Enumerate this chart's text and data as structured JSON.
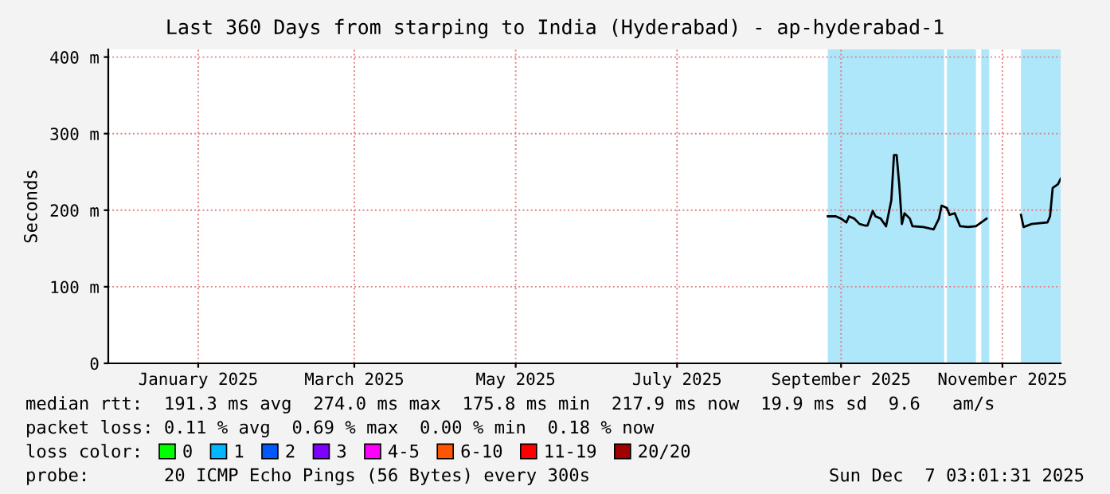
{
  "chart_data": {
    "type": "line",
    "title": "Last 360 Days from starping to India (Hyderabad) - ap-hyderabad-1",
    "ylabel": "Seconds",
    "x": [
      "2025-09-10",
      "2025-09-13",
      "2025-09-15",
      "2025-09-17",
      "2025-09-18",
      "2025-09-20",
      "2025-09-22",
      "2025-09-24",
      "2025-09-25",
      "2025-09-27",
      "2025-09-28",
      "2025-09-30",
      "2025-10-02",
      "2025-10-04",
      "2025-10-05",
      "2025-10-06",
      "2025-10-07",
      "2025-10-08",
      "2025-10-09",
      "2025-10-11",
      "2025-10-12",
      "2025-10-16",
      "2025-10-20",
      "2025-10-22",
      "2025-10-23",
      "2025-10-25",
      "2025-10-26",
      "2025-10-28",
      "2025-10-30",
      "2025-11-02",
      "2025-11-05",
      "2025-11-07",
      "2025-11-09",
      "2025-11-15",
      "2025-11-22",
      "2025-11-23",
      "2025-11-26",
      "2025-12-02",
      "2025-12-03",
      "2025-12-04",
      "2025-12-06",
      "2025-12-07"
    ],
    "series": [
      {
        "color": "#000000",
        "values": [
          192,
          192,
          189,
          184,
          192,
          189,
          182,
          180,
          180,
          199,
          192,
          189,
          179,
          213,
          272,
          272,
          233,
          182,
          196,
          189,
          179,
          178,
          175,
          189,
          206,
          203,
          194,
          196,
          179,
          178,
          179,
          184,
          189,
          null,
          194,
          178,
          182,
          184,
          192,
          229,
          234,
          241
        ]
      },
      {
        "name": "0",
        "color": "#00ff00",
        "values": [
          null,
          null,
          null,
          null,
          null,
          null,
          null,
          null,
          null,
          null,
          null,
          null,
          null,
          null,
          null,
          null,
          null,
          null,
          null,
          null,
          null,
          null,
          null,
          null,
          null,
          null,
          null,
          null,
          null,
          null,
          null,
          null,
          null,
          null,
          null,
          null,
          null,
          null,
          null,
          null,
          null,
          null
        ]
      },
      {
        "name": "1",
        "color": "#00b8ff",
        "values": [
          null,
          null,
          null,
          null,
          null,
          null,
          null,
          null,
          null,
          null,
          null,
          null,
          null,
          null,
          null,
          null,
          null,
          null,
          null,
          null,
          null,
          null,
          null,
          null,
          null,
          null,
          null,
          null,
          null,
          null,
          null,
          null,
          null,
          null,
          null,
          null,
          null,
          null,
          null,
          null,
          null,
          null
        ]
      },
      {
        "name": "2",
        "color": "#0059ff",
        "values": [
          null,
          null,
          null,
          null,
          null,
          null,
          null,
          null,
          null,
          null,
          null,
          null,
          null,
          null,
          null,
          null,
          null,
          null,
          null,
          null,
          null,
          null,
          null,
          null,
          null,
          null,
          null,
          null,
          null,
          null,
          null,
          null,
          null,
          null,
          null,
          null,
          null,
          null,
          null,
          null,
          null,
          null
        ]
      },
      {
        "name": "3",
        "color": "#7e00ff",
        "values": [
          null,
          null,
          null,
          null,
          null,
          null,
          null,
          null,
          null,
          null,
          null,
          null,
          null,
          null,
          null,
          null,
          null,
          null,
          null,
          null,
          null,
          null,
          null,
          null,
          null,
          null,
          null,
          null,
          null,
          null,
          null,
          null,
          null,
          null,
          null,
          null,
          null,
          null,
          null,
          null,
          null,
          null
        ]
      },
      {
        "name": "4-5",
        "color": "#ff00ff",
        "values": [
          null,
          null,
          null,
          null,
          null,
          null,
          null,
          null,
          null,
          null,
          null,
          null,
          null,
          null,
          null,
          null,
          null,
          null,
          null,
          null,
          null,
          null,
          null,
          null,
          null,
          null,
          null,
          null,
          null,
          null,
          null,
          null,
          null,
          null,
          null,
          null,
          null,
          null,
          null,
          null,
          null,
          null
        ]
      },
      {
        "name": "6-10",
        "color": "#ff5500",
        "values": [
          null,
          null,
          null,
          null,
          null,
          null,
          null,
          null,
          null,
          null,
          null,
          null,
          null,
          null,
          null,
          null,
          null,
          null,
          null,
          null,
          null,
          null,
          null,
          null,
          null,
          null,
          null,
          null,
          null,
          null,
          null,
          null,
          null,
          null,
          null,
          null,
          null,
          null,
          null,
          null,
          null,
          null
        ]
      },
      {
        "name": "11-19",
        "color": "#ff0000",
        "values": [
          null,
          null,
          null,
          null,
          null,
          null,
          null,
          null,
          null,
          null,
          null,
          null,
          null,
          null,
          null,
          null,
          null,
          null,
          null,
          null,
          null,
          null,
          null,
          null,
          null,
          null,
          null,
          null,
          null,
          null,
          null,
          null,
          null,
          null,
          null,
          null,
          null,
          null,
          null,
          null,
          null,
          null
        ]
      },
      {
        "name": "20/20",
        "color": "#a10000",
        "values": [
          null,
          null,
          null,
          null,
          null,
          null,
          null,
          null,
          null,
          null,
          null,
          null,
          null,
          null,
          null,
          null,
          null,
          null,
          null,
          null,
          null,
          null,
          null,
          null,
          null,
          null,
          null,
          null,
          null,
          null,
          null,
          null,
          null,
          null,
          null,
          null,
          null,
          null,
          null,
          null,
          null,
          null
        ]
      }
    ],
    "legend": "bottom",
    "legend_title": "loss color:",
    "bands": [
      {
        "axis": "x",
        "from": "2025-09-10",
        "to": "2025-10-24",
        "label": null,
        "color": "#aee6fa"
      },
      {
        "axis": "x",
        "from": "2025-10-25",
        "to": "2025-11-05",
        "label": null,
        "color": "#aee6fa"
      },
      {
        "axis": "x",
        "from": "2025-11-07",
        "to": "2025-11-10",
        "label": null,
        "color": "#aee6fa"
      },
      {
        "axis": "x",
        "from": "2025-11-22",
        "to": "2025-12-07",
        "label": null,
        "color": "#aee6fa"
      }
    ],
    "xlim": [
      "2024-12-12",
      "2025-12-07"
    ],
    "xticks": [
      {
        "value": "2025-01-15",
        "label": "January 2025"
      },
      {
        "value": "2025-03-15",
        "label": "March 2025"
      },
      {
        "value": "2025-05-15",
        "label": "May 2025"
      },
      {
        "value": "2025-07-15",
        "label": "July 2025"
      },
      {
        "value": "2025-09-15",
        "label": "September 2025"
      },
      {
        "value": "2025-11-15",
        "label": "November 2025"
      }
    ],
    "ylim": [
      0,
      410
    ],
    "yticks": [
      0,
      {
        "value": 100,
        "label": "100 m"
      },
      {
        "value": 200,
        "label": "200 m"
      },
      {
        "value": 300,
        "label": "300 m"
      },
      {
        "value": 400,
        "label": "400 m"
      }
    ],
    "grid": true,
    "annotations": [
      "median rtt:  191.3 ms avg  274.0 ms max  175.8 ms min  217.9 ms now  19.9 ms sd  9.6   am/s",
      "packet loss: 0.11 % avg  0.69 % max  0.00 % min  0.18 % now",
      "probe:       20 ICMP Echo Pings (56 Bytes) every 300s",
      "Sun Dec  7 03:01:31 2025"
    ]
  }
}
